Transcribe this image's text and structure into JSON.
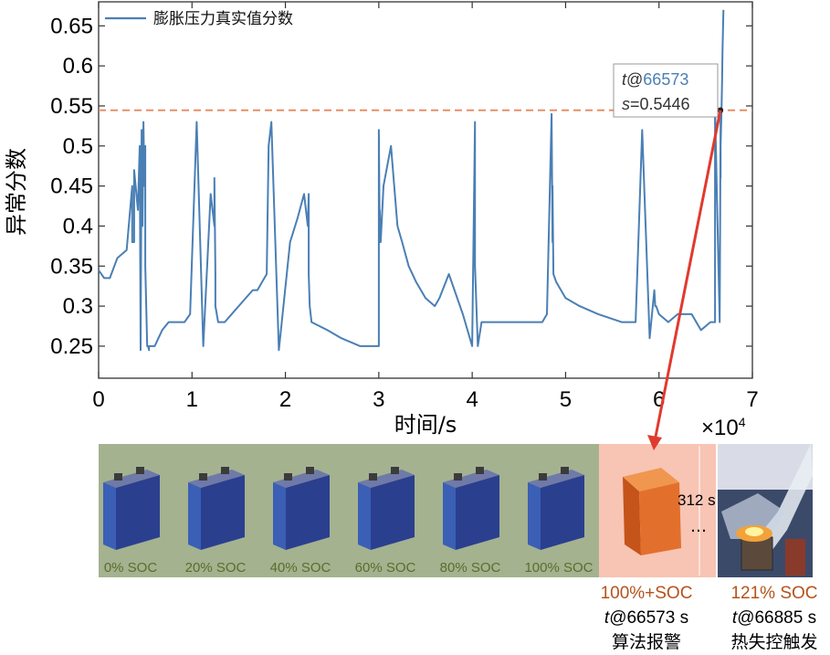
{
  "chart_data": {
    "type": "line",
    "legend": "膨胀压力真实值分数",
    "xlabel": "时间/s",
    "ylabel": "异常分数",
    "x_multiplier": "×10",
    "x_multiplier_exp": "4",
    "xlim": [
      0,
      7
    ],
    "ylim": [
      0.21,
      0.68
    ],
    "xticks": [
      "0",
      "1",
      "2",
      "3",
      "4",
      "5",
      "6",
      "7"
    ],
    "xtick_values": [
      0,
      1,
      2,
      3,
      4,
      5,
      6,
      7
    ],
    "yticks": [
      "0.25",
      "0.3",
      "0.35",
      "0.4",
      "0.45",
      "0.5",
      "0.55",
      "0.6",
      "0.65"
    ],
    "ytick_values": [
      0.25,
      0.3,
      0.35,
      0.4,
      0.45,
      0.5,
      0.55,
      0.6,
      0.65
    ],
    "threshold": 0.5446,
    "threshold_color": "#e8875f",
    "line_color": "#4a7fb5",
    "series": [
      {
        "name": "膨胀压力真实值分数",
        "x": [
          0.0,
          0.06,
          0.12,
          0.2,
          0.3,
          0.36,
          0.36,
          0.38,
          0.38,
          0.42,
          0.44,
          0.45,
          0.46,
          0.47,
          0.48,
          0.49,
          0.49,
          0.5,
          0.5,
          0.52,
          0.53,
          0.54,
          0.54,
          0.56,
          0.6,
          0.68,
          0.75,
          0.83,
          0.92,
          0.98,
          1.05,
          1.12,
          1.2,
          1.24,
          1.24,
          1.25,
          1.25,
          1.28,
          1.35,
          1.5,
          1.65,
          1.7,
          1.75,
          1.8,
          1.82,
          1.85,
          1.93,
          2.05,
          2.13,
          2.2,
          2.24,
          2.25,
          2.25,
          2.26,
          2.28,
          2.45,
          2.6,
          2.7,
          2.8,
          2.95,
          3.0,
          3.0,
          3.01,
          3.01,
          3.02,
          3.05,
          3.13,
          3.2,
          3.25,
          3.32,
          3.4,
          3.5,
          3.6,
          3.65,
          3.75,
          3.9,
          4.0,
          4.03,
          4.03,
          4.06,
          4.1,
          4.2,
          4.4,
          4.6,
          4.75,
          4.8,
          4.85,
          4.86,
          4.86,
          4.87,
          4.9,
          5.0,
          5.15,
          5.35,
          5.6,
          5.75,
          5.82,
          5.9,
          5.95,
          5.96,
          5.97,
          6.0,
          6.1,
          6.2,
          6.35,
          6.45,
          6.55,
          6.6,
          6.6,
          6.62,
          6.65,
          6.66,
          6.66,
          6.66,
          6.67,
          6.675,
          6.68,
          6.69
        ],
        "values": [
          0.345,
          0.335,
          0.335,
          0.36,
          0.37,
          0.45,
          0.38,
          0.38,
          0.47,
          0.42,
          0.5,
          0.245,
          0.52,
          0.4,
          0.53,
          0.45,
          0.48,
          0.5,
          0.35,
          0.25,
          0.25,
          0.245,
          0.25,
          0.25,
          0.25,
          0.27,
          0.28,
          0.28,
          0.28,
          0.29,
          0.53,
          0.25,
          0.44,
          0.4,
          0.46,
          0.34,
          0.3,
          0.28,
          0.28,
          0.3,
          0.32,
          0.32,
          0.33,
          0.34,
          0.5,
          0.53,
          0.245,
          0.38,
          0.41,
          0.44,
          0.4,
          0.44,
          0.34,
          0.3,
          0.28,
          0.27,
          0.26,
          0.255,
          0.25,
          0.25,
          0.25,
          0.52,
          0.38,
          0.42,
          0.38,
          0.45,
          0.5,
          0.4,
          0.38,
          0.35,
          0.33,
          0.31,
          0.3,
          0.31,
          0.34,
          0.29,
          0.25,
          0.53,
          0.35,
          0.25,
          0.28,
          0.28,
          0.28,
          0.28,
          0.28,
          0.29,
          0.54,
          0.38,
          0.45,
          0.34,
          0.33,
          0.31,
          0.3,
          0.29,
          0.28,
          0.28,
          0.52,
          0.26,
          0.32,
          0.3,
          0.3,
          0.29,
          0.28,
          0.29,
          0.29,
          0.27,
          0.28,
          0.28,
          0.55,
          0.44,
          0.28,
          0.54,
          0.46,
          0.5,
          0.5446,
          0.58,
          0.62,
          0.67
        ]
      }
    ],
    "annotation": {
      "t_label": "t",
      "t_at": "@",
      "t_value": "66573",
      "s_label": "s",
      "s_eq": "=",
      "s_value": "0.5446",
      "x": 6.6573,
      "y": 0.5446
    }
  },
  "bottom_panel": {
    "soc_labels": [
      "0% SOC",
      "20% SOC",
      "40% SOC",
      "60% SOC",
      "80% SOC",
      "100% SOC"
    ],
    "interval": "312 s",
    "ellipsis": "…",
    "alarm": {
      "soc": "100%+SOC",
      "time_t": "t",
      "time_rest": "@66573 s",
      "label": "算法报警"
    },
    "runaway": {
      "soc": "121% SOC",
      "time_t": "t",
      "time_rest": "@66885 s",
      "label": "热失控触发"
    },
    "colors": {
      "panel_bg": "#a4b290",
      "alarm_bg": "#f8c4b4",
      "cell_blue": "#2b3f8f",
      "cell_orange": "#d96a24",
      "arrow": "#e03a2f"
    }
  }
}
